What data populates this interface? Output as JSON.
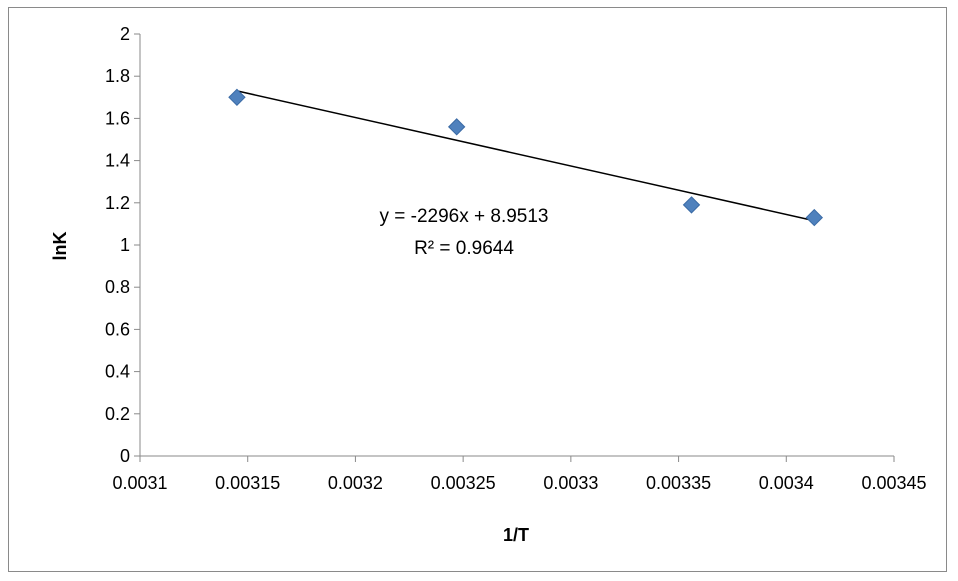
{
  "chart_data": {
    "type": "scatter",
    "title": "",
    "xlabel": "1/T",
    "ylabel": "lnK",
    "xlim": [
      0.0031,
      0.00345
    ],
    "ylim": [
      0,
      2
    ],
    "x_ticks": [
      "0.0031",
      "0.00315",
      "0.0032",
      "0.00325",
      "0.0033",
      "0.00335",
      "0.0034",
      "0.00345"
    ],
    "y_ticks": [
      "0",
      "0.2",
      "0.4",
      "0.6",
      "0.8",
      "1",
      "1.2",
      "1.4",
      "1.6",
      "1.8",
      "2"
    ],
    "grid": false,
    "legend": "none",
    "marker_color": "#4f81bd",
    "series": [
      {
        "x": [
          0.003145,
          0.003247,
          0.003356,
          0.003413
        ],
        "y": [
          1.7,
          1.56,
          1.19,
          1.13
        ]
      }
    ],
    "trendline": {
      "type": "linear",
      "slope": -2296,
      "intercept": 8.9513,
      "x_range": [
        0.003145,
        0.003413
      ],
      "color": "#000000",
      "equation_label": "y = -2296x + 8.9513",
      "r2_label": "R² = 0.9644"
    }
  }
}
